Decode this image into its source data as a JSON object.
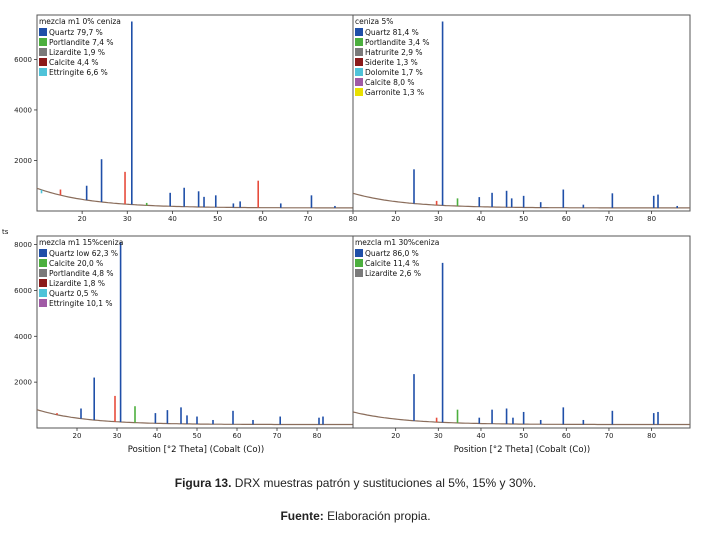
{
  "figure": {
    "caption_label": "Figura 13.",
    "caption_text": " DRX muestras patrón y sustituciones al 5%, 15% y 30%.",
    "source_label": "Fuente:",
    "source_text": " Elaboración propia.",
    "y_unit_stub": "ts"
  },
  "chart_data": [
    {
      "type": "line",
      "title": "mezcla m1 0% ceniza",
      "xlabel": "",
      "ylabel": "",
      "xlim": [
        10,
        80
      ],
      "ylim": [
        0,
        7600
      ],
      "x_ticks": [
        20,
        30,
        40,
        50,
        60,
        70,
        80
      ],
      "x_ticklabels": [
        "20",
        "30",
        "40",
        "50",
        "60",
        "70",
        "80"
      ],
      "y_ticks": [
        2000,
        4000,
        6000
      ],
      "y_ticklabels": [
        "2000",
        "4000",
        "6000"
      ],
      "legend_placement": "top-left",
      "legend": [
        {
          "label": "Quartz 79,7 %",
          "color": "#1f4fa8"
        },
        {
          "label": "Portlandite 7,4 %",
          "color": "#4caf3e"
        },
        {
          "label": "Lizardite 1,9 %",
          "color": "#7a7a7a"
        },
        {
          "label": "Calcite 4,4 %",
          "color": "#8b1a1a"
        },
        {
          "label": "Ettringite 6,6 %",
          "color": "#4fc3d9"
        }
      ],
      "background": {
        "start": 900,
        "end": 120,
        "decay": 12
      },
      "peaks": [
        {
          "x": 11.0,
          "y": 700,
          "color": "#4fc3d9"
        },
        {
          "x": 15.2,
          "y": 850,
          "color": "#e74c3c"
        },
        {
          "x": 21.0,
          "y": 1000,
          "color": "#1f4fa8"
        },
        {
          "x": 24.3,
          "y": 2050,
          "color": "#1f4fa8"
        },
        {
          "x": 29.5,
          "y": 1550,
          "color": "#e74c3c"
        },
        {
          "x": 31.0,
          "y": 7500,
          "color": "#1f4fa8"
        },
        {
          "x": 34.3,
          "y": 320,
          "color": "#4caf3e"
        },
        {
          "x": 39.5,
          "y": 720,
          "color": "#1f4fa8"
        },
        {
          "x": 42.6,
          "y": 920,
          "color": "#1f4fa8"
        },
        {
          "x": 45.8,
          "y": 780,
          "color": "#1f4fa8"
        },
        {
          "x": 47.0,
          "y": 560,
          "color": "#1f4fa8"
        },
        {
          "x": 49.6,
          "y": 620,
          "color": "#1f4fa8"
        },
        {
          "x": 53.5,
          "y": 300,
          "color": "#1f4fa8"
        },
        {
          "x": 55.0,
          "y": 380,
          "color": "#1f4fa8"
        },
        {
          "x": 59.0,
          "y": 1200,
          "color": "#e74c3c"
        },
        {
          "x": 64.0,
          "y": 300,
          "color": "#1f4fa8"
        },
        {
          "x": 70.8,
          "y": 620,
          "color": "#1f4fa8"
        },
        {
          "x": 76.0,
          "y": 200,
          "color": "#1f4fa8"
        }
      ]
    },
    {
      "type": "line",
      "title": "ceniza 5%",
      "xlabel": "",
      "ylabel": "",
      "xlim": [
        10,
        89
      ],
      "ylim": [
        0,
        7600
      ],
      "x_ticks": [
        20,
        30,
        40,
        50,
        60,
        70,
        80
      ],
      "x_ticklabels": [
        "20",
        "30",
        "40",
        "50",
        "60",
        "70",
        "80"
      ],
      "y_ticks": [],
      "y_ticklabels": [],
      "legend_placement": "top-left",
      "legend": [
        {
          "label": "Quartz 81,4 %",
          "color": "#1f4fa8"
        },
        {
          "label": "Portlandite 3,4 %",
          "color": "#4caf3e"
        },
        {
          "label": "Hatrurite 2,9 %",
          "color": "#7a7a7a"
        },
        {
          "label": "Siderite 1,3 %",
          "color": "#8b1a1a"
        },
        {
          "label": "Dolomite 1,7 %",
          "color": "#4fc3d9"
        },
        {
          "label": "Calcite 8,0 %",
          "color": "#a05aa5"
        },
        {
          "label": "Garronite 1,3 %",
          "color": "#e9e000"
        }
      ],
      "background": {
        "start": 700,
        "end": 120,
        "decay": 12
      },
      "peaks": [
        {
          "x": 24.3,
          "y": 1650,
          "color": "#1f4fa8"
        },
        {
          "x": 29.6,
          "y": 400,
          "color": "#e74c3c"
        },
        {
          "x": 31.0,
          "y": 7500,
          "color": "#1f4fa8"
        },
        {
          "x": 34.5,
          "y": 500,
          "color": "#4caf3e"
        },
        {
          "x": 39.6,
          "y": 550,
          "color": "#1f4fa8"
        },
        {
          "x": 42.6,
          "y": 720,
          "color": "#1f4fa8"
        },
        {
          "x": 46.0,
          "y": 800,
          "color": "#1f4fa8"
        },
        {
          "x": 47.2,
          "y": 500,
          "color": "#1f4fa8"
        },
        {
          "x": 50.0,
          "y": 600,
          "color": "#1f4fa8"
        },
        {
          "x": 54.0,
          "y": 350,
          "color": "#1f4fa8"
        },
        {
          "x": 59.3,
          "y": 850,
          "color": "#1f4fa8"
        },
        {
          "x": 64.0,
          "y": 250,
          "color": "#1f4fa8"
        },
        {
          "x": 70.8,
          "y": 700,
          "color": "#1f4fa8"
        },
        {
          "x": 80.5,
          "y": 600,
          "color": "#1f4fa8"
        },
        {
          "x": 81.5,
          "y": 650,
          "color": "#1f4fa8"
        },
        {
          "x": 86.0,
          "y": 200,
          "color": "#1f4fa8"
        }
      ]
    },
    {
      "type": "line",
      "title": "mezcla m1 15%ceniza",
      "xlabel": "Position [°2 Theta] (Cobalt (Co))",
      "ylabel": "",
      "xlim": [
        10,
        89
      ],
      "ylim": [
        0,
        8200
      ],
      "x_ticks": [
        20,
        30,
        40,
        50,
        60,
        70,
        80
      ],
      "x_ticklabels": [
        "20",
        "30",
        "40",
        "50",
        "60",
        "70",
        "80"
      ],
      "y_ticks": [
        2000,
        4000,
        6000,
        8000
      ],
      "y_ticklabels": [
        "2000",
        "4000",
        "6000",
        "8000"
      ],
      "legend_placement": "top-left",
      "legend": [
        {
          "label": "Quartz low 62,3 %",
          "color": "#1f4fa8"
        },
        {
          "label": "Calcite 20,0 %",
          "color": "#4caf3e"
        },
        {
          "label": "Portlandite 4,8 %",
          "color": "#7a7a7a"
        },
        {
          "label": "Lizardite 1,8 %",
          "color": "#8b1a1a"
        },
        {
          "label": "Quartz 0,5 %",
          "color": "#4fc3d9"
        },
        {
          "label": "Ettringite 10,1 %",
          "color": "#a05aa5"
        }
      ],
      "background": {
        "start": 800,
        "end": 150,
        "decay": 12
      },
      "peaks": [
        {
          "x": 15.0,
          "y": 650,
          "color": "#e74c3c"
        },
        {
          "x": 21.0,
          "y": 850,
          "color": "#1f4fa8"
        },
        {
          "x": 24.3,
          "y": 2200,
          "color": "#1f4fa8"
        },
        {
          "x": 29.5,
          "y": 1400,
          "color": "#e74c3c"
        },
        {
          "x": 30.9,
          "y": 8100,
          "color": "#1f4fa8"
        },
        {
          "x": 34.5,
          "y": 950,
          "color": "#4caf3e"
        },
        {
          "x": 39.6,
          "y": 650,
          "color": "#1f4fa8"
        },
        {
          "x": 42.6,
          "y": 780,
          "color": "#1f4fa8"
        },
        {
          "x": 46.0,
          "y": 900,
          "color": "#1f4fa8"
        },
        {
          "x": 47.5,
          "y": 550,
          "color": "#1f4fa8"
        },
        {
          "x": 50.0,
          "y": 500,
          "color": "#1f4fa8"
        },
        {
          "x": 54.0,
          "y": 350,
          "color": "#1f4fa8"
        },
        {
          "x": 59.0,
          "y": 750,
          "color": "#1f4fa8"
        },
        {
          "x": 64.0,
          "y": 350,
          "color": "#1f4fa8"
        },
        {
          "x": 70.8,
          "y": 500,
          "color": "#1f4fa8"
        },
        {
          "x": 80.5,
          "y": 450,
          "color": "#1f4fa8"
        },
        {
          "x": 81.5,
          "y": 500,
          "color": "#1f4fa8"
        }
      ]
    },
    {
      "type": "line",
      "title": "mezcla m1 30%ceniza",
      "xlabel": "Position [°2 Theta] (Cobalt (Co))",
      "ylabel": "",
      "xlim": [
        10,
        89
      ],
      "ylim": [
        0,
        8200
      ],
      "x_ticks": [
        20,
        30,
        40,
        50,
        60,
        70,
        80
      ],
      "x_ticklabels": [
        "20",
        "30",
        "40",
        "50",
        "60",
        "70",
        "80"
      ],
      "y_ticks": [],
      "y_ticklabels": [],
      "legend_placement": "top-left",
      "legend": [
        {
          "label": "Quartz 86,0 %",
          "color": "#1f4fa8"
        },
        {
          "label": "Calcite 11,4 %",
          "color": "#4caf3e"
        },
        {
          "label": "Lizardite 2,6 %",
          "color": "#7a7a7a"
        }
      ],
      "background": {
        "start": 700,
        "end": 150,
        "decay": 12
      },
      "peaks": [
        {
          "x": 24.3,
          "y": 2350,
          "color": "#1f4fa8"
        },
        {
          "x": 29.6,
          "y": 450,
          "color": "#e74c3c"
        },
        {
          "x": 31.0,
          "y": 7200,
          "color": "#1f4fa8"
        },
        {
          "x": 34.5,
          "y": 800,
          "color": "#4caf3e"
        },
        {
          "x": 39.6,
          "y": 450,
          "color": "#1f4fa8"
        },
        {
          "x": 42.6,
          "y": 800,
          "color": "#1f4fa8"
        },
        {
          "x": 46.0,
          "y": 850,
          "color": "#1f4fa8"
        },
        {
          "x": 47.5,
          "y": 450,
          "color": "#1f4fa8"
        },
        {
          "x": 50.0,
          "y": 700,
          "color": "#1f4fa8"
        },
        {
          "x": 54.0,
          "y": 350,
          "color": "#1f4fa8"
        },
        {
          "x": 59.3,
          "y": 900,
          "color": "#1f4fa8"
        },
        {
          "x": 64.0,
          "y": 350,
          "color": "#1f4fa8"
        },
        {
          "x": 70.8,
          "y": 750,
          "color": "#1f4fa8"
        },
        {
          "x": 80.5,
          "y": 650,
          "color": "#1f4fa8"
        },
        {
          "x": 81.5,
          "y": 700,
          "color": "#1f4fa8"
        }
      ]
    }
  ]
}
